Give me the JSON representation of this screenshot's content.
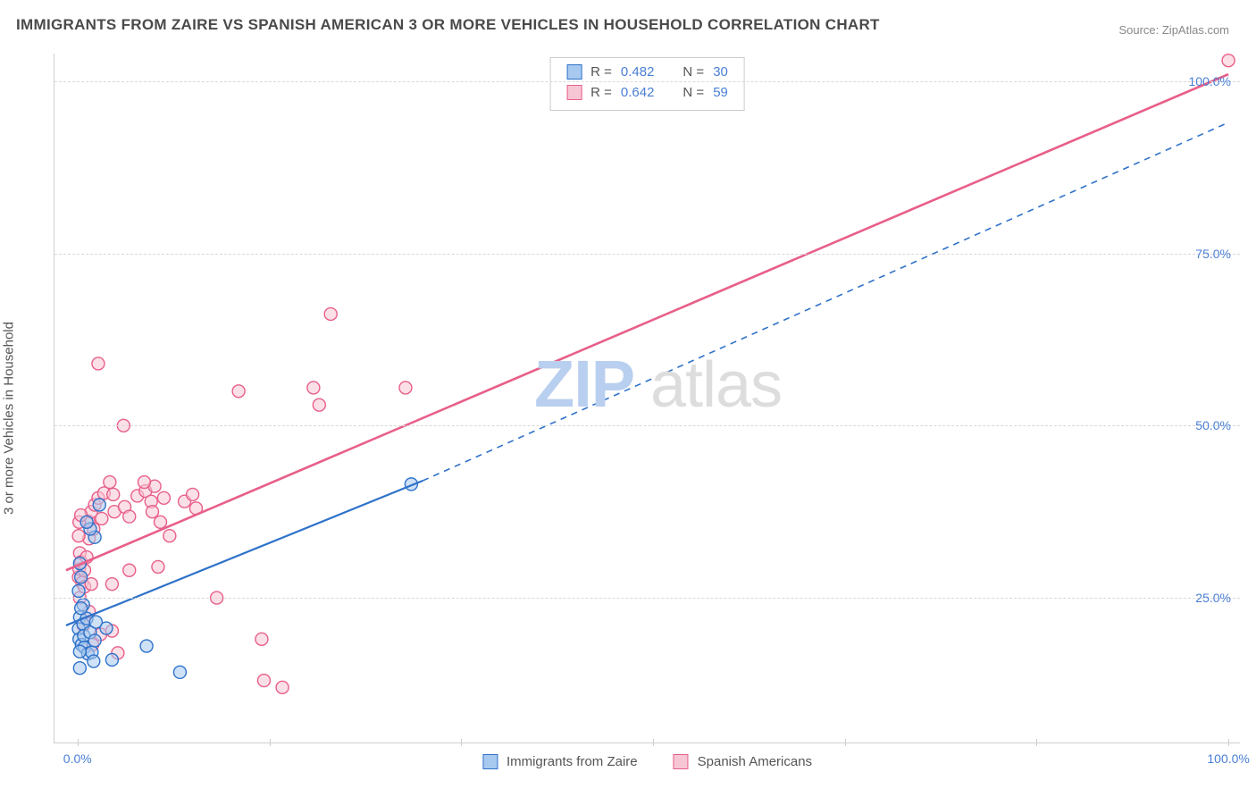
{
  "title": "IMMIGRANTS FROM ZAIRE VS SPANISH AMERICAN 3 OR MORE VEHICLES IN HOUSEHOLD CORRELATION CHART",
  "source": "Source: ZipAtlas.com",
  "watermark": {
    "zip": "ZIP",
    "atlas": "atlas"
  },
  "yAxis": {
    "label": "3 or more Vehicles in Household",
    "ticks": [
      {
        "v": 25,
        "label": "25.0%"
      },
      {
        "v": 50,
        "label": "50.0%"
      },
      {
        "v": 75,
        "label": "75.0%"
      },
      {
        "v": 100,
        "label": "100.0%"
      }
    ],
    "ymin": 4,
    "ymax": 104
  },
  "xAxis": {
    "ticks": [
      0,
      16.67,
      33.33,
      50,
      66.67,
      83.33,
      100
    ],
    "labelMin": "0.0%",
    "labelMax": "100.0%",
    "xmin": -2,
    "xmax": 101
  },
  "series": {
    "blue": {
      "name": "Immigrants from Zaire",
      "color_stroke": "#2f72c9",
      "color_fill": "#a8c9ef",
      "r_value": "0.482",
      "n_value": "30",
      "trend_solid": {
        "x1": -1,
        "y1": 21,
        "x2": 30,
        "y2": 42
      },
      "trend_dashed": {
        "x1": 30,
        "y1": 42,
        "x2": 100,
        "y2": 94
      },
      "line_width": 2.2,
      "marker_r": 7,
      "points": [
        [
          0.1,
          20.5
        ],
        [
          0.2,
          22.2
        ],
        [
          0.15,
          19.0
        ],
        [
          0.35,
          18.2
        ],
        [
          0.5,
          21.2
        ],
        [
          0.55,
          19.5
        ],
        [
          0.6,
          17.8
        ],
        [
          0.9,
          16.9
        ],
        [
          1.1,
          20.0
        ],
        [
          1.25,
          17.1
        ],
        [
          1.4,
          15.8
        ],
        [
          0.2,
          14.8
        ],
        [
          0.2,
          17.2
        ],
        [
          0.8,
          22.0
        ],
        [
          1.5,
          18.8
        ],
        [
          2.5,
          20.6
        ],
        [
          3.0,
          16.0
        ],
        [
          6.0,
          18.0
        ],
        [
          8.9,
          14.2
        ],
        [
          1.5,
          33.8
        ],
        [
          1.1,
          35.0
        ],
        [
          0.8,
          36.0
        ],
        [
          1.9,
          38.5
        ],
        [
          0.1,
          26.0
        ],
        [
          1.6,
          21.5
        ],
        [
          0.5,
          24.0
        ],
        [
          0.2,
          30.0
        ],
        [
          0.3,
          28.0
        ],
        [
          29.0,
          41.5
        ],
        [
          0.3,
          23.5
        ]
      ]
    },
    "pink": {
      "name": "Spanish Americans",
      "color_stroke": "#e85f89",
      "color_fill": "#f7c6d4",
      "r_value": "0.642",
      "n_value": "59",
      "trend_solid": {
        "x1": -1,
        "y1": 29,
        "x2": 100,
        "y2": 101
      },
      "line_width": 2.6,
      "marker_r": 7,
      "points": [
        [
          100,
          103
        ],
        [
          0.1,
          28.0
        ],
        [
          0.2,
          31.5
        ],
        [
          0.15,
          29.2
        ],
        [
          0.3,
          30.2
        ],
        [
          0.4,
          27.2
        ],
        [
          0.2,
          25.0
        ],
        [
          0.6,
          26.6
        ],
        [
          0.6,
          29.0
        ],
        [
          0.8,
          30.9
        ],
        [
          1.0,
          33.6
        ],
        [
          0.95,
          36.1
        ],
        [
          1.2,
          27.0
        ],
        [
          1.2,
          37.5
        ],
        [
          1.4,
          35.0
        ],
        [
          1.5,
          38.5
        ],
        [
          1.8,
          39.5
        ],
        [
          2.1,
          36.5
        ],
        [
          2.3,
          40.2
        ],
        [
          2.8,
          41.8
        ],
        [
          3.1,
          40.0
        ],
        [
          3.2,
          37.5
        ],
        [
          4.1,
          38.2
        ],
        [
          4.5,
          36.8
        ],
        [
          5.2,
          39.8
        ],
        [
          5.9,
          40.5
        ],
        [
          6.4,
          39.0
        ],
        [
          6.7,
          41.2
        ],
        [
          7.5,
          39.5
        ],
        [
          9.3,
          39.0
        ],
        [
          10.0,
          40.0
        ],
        [
          10.3,
          38.0
        ],
        [
          12.1,
          25.0
        ],
        [
          4.5,
          29.0
        ],
        [
          3.0,
          27.0
        ],
        [
          5.8,
          41.8
        ],
        [
          1.8,
          59.0
        ],
        [
          4.0,
          50.0
        ],
        [
          3.5,
          17.0
        ],
        [
          7.0,
          29.5
        ],
        [
          8.0,
          34.0
        ],
        [
          16.0,
          19.0
        ],
        [
          16.2,
          13.0
        ],
        [
          17.8,
          12.0
        ],
        [
          20.5,
          55.5
        ],
        [
          21.0,
          53.0
        ],
        [
          14.0,
          55.0
        ],
        [
          22.0,
          66.2
        ],
        [
          28.5,
          55.5
        ],
        [
          0.5,
          21.0
        ],
        [
          1.0,
          23.0
        ],
        [
          1.3,
          18.2
        ],
        [
          2.0,
          19.7
        ],
        [
          3.0,
          20.2
        ],
        [
          0.1,
          34.0
        ],
        [
          0.15,
          36.0
        ],
        [
          0.3,
          37.0
        ],
        [
          6.5,
          37.5
        ],
        [
          7.2,
          36.0
        ]
      ]
    }
  },
  "background_color": "#ffffff",
  "grid_color": "#d8d8d8",
  "axis_color": "#cfcfcf",
  "label_color": "#555555",
  "value_color": "#4a7fd6"
}
